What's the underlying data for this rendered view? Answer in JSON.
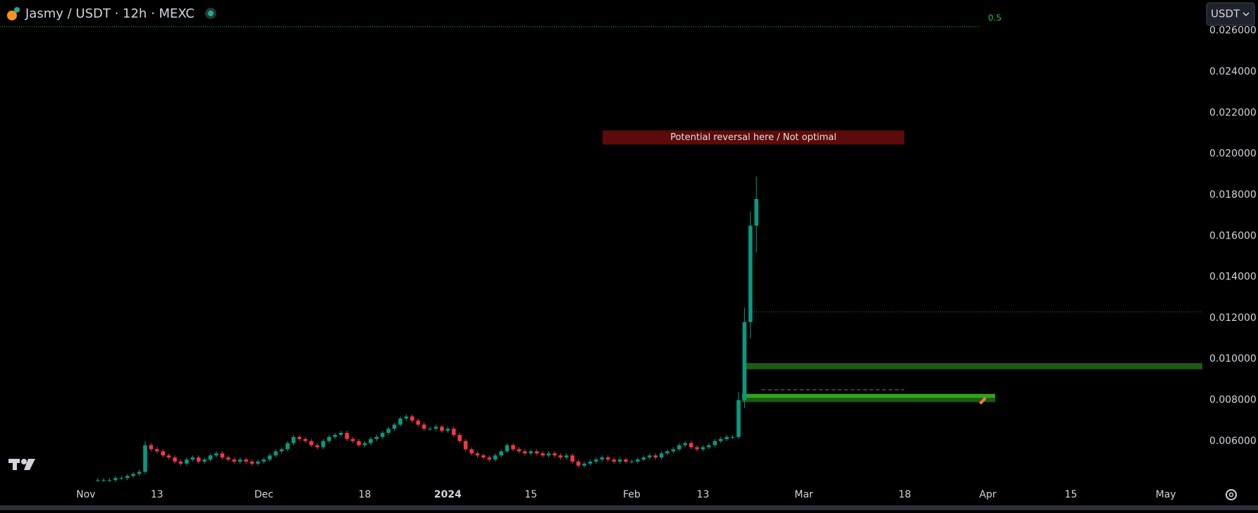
{
  "chart_data": {
    "type": "candlestick",
    "title": "Jasmy / USDT · 12h · MEXC",
    "quote_selector": "USDT",
    "categories": [
      null,
      null,
      null,
      null,
      null,
      null,
      null,
      null,
      null,
      null,
      null,
      null,
      null,
      null,
      "Nov",
      null,
      null,
      null,
      null,
      null,
      null,
      null,
      null,
      null,
      null,
      null,
      "13",
      null,
      null,
      null,
      null,
      null,
      null,
      null,
      null,
      null,
      null,
      null,
      null,
      null,
      null,
      null,
      null,
      null,
      "Dec",
      null,
      null,
      null,
      null,
      null,
      null,
      null,
      null,
      null,
      null,
      null,
      null,
      null,
      null,
      null,
      null,
      "18",
      null,
      null,
      null,
      null,
      null,
      null,
      null,
      null,
      null,
      null,
      null,
      null,
      null,
      "2024",
      null,
      null,
      null,
      null,
      null,
      null,
      null,
      null,
      null,
      null,
      null,
      null,
      null,
      "15",
      null,
      null,
      null,
      null,
      null,
      null,
      null,
      null,
      null,
      null,
      null,
      null,
      null,
      null,
      null,
      null,
      "Feb",
      null,
      null,
      null,
      null,
      null,
      null,
      null,
      null,
      null,
      null,
      null,
      "13",
      null,
      null,
      null,
      null,
      null,
      null,
      null,
      null,
      null,
      null,
      null,
      null,
      null,
      null,
      null,
      null,
      "Mar",
      null,
      null,
      null,
      null,
      null,
      null,
      null,
      null,
      null,
      null,
      null,
      null,
      null,
      null,
      null,
      null,
      "18",
      null,
      null,
      null,
      null,
      null,
      null,
      null,
      null,
      null,
      null,
      null,
      null,
      null,
      "Apr",
      null,
      null,
      null,
      null,
      null,
      null,
      null,
      null,
      null,
      null,
      null,
      null,
      null,
      "15",
      null,
      null,
      null,
      null,
      null,
      null,
      null,
      null,
      null,
      null,
      null,
      null,
      null,
      null,
      null,
      "May",
      null,
      null,
      null,
      null,
      null,
      null
    ],
    "open": [
      null,
      null,
      null,
      null,
      null,
      null,
      null,
      null,
      null,
      null,
      null,
      null,
      null,
      null,
      null,
      null,
      0.0041,
      0.0041,
      0.0041,
      0.0041,
      0.0042,
      0.0042,
      0.0043,
      0.0044,
      0.0045,
      0.0058,
      0.0056,
      0.0055,
      0.0053,
      0.0052,
      0.005,
      0.0049,
      0.0051,
      0.0052,
      0.005,
      0.0051,
      0.0053,
      0.0054,
      0.0052,
      0.0051,
      0.005,
      0.0051,
      0.005,
      0.0049,
      0.005,
      0.0051,
      0.0053,
      0.0055,
      0.0056,
      0.0059,
      0.0062,
      0.0061,
      0.006,
      0.0058,
      0.0057,
      0.006,
      0.0062,
      0.0063,
      0.0064,
      0.0061,
      0.006,
      0.0058,
      0.0059,
      0.0061,
      0.0062,
      0.0064,
      0.0066,
      0.0068,
      0.0071,
      0.0072,
      0.007,
      0.0068,
      0.0066,
      0.0066,
      0.0067,
      0.0065,
      0.0066,
      0.0063,
      0.006,
      0.0056,
      0.0054,
      0.0053,
      0.0052,
      0.0051,
      0.0053,
      0.0055,
      0.0058,
      0.0056,
      0.0055,
      0.0054,
      0.0055,
      0.0054,
      0.0053,
      0.0054,
      0.0053,
      0.0052,
      0.0053,
      0.005,
      0.0048,
      0.0049,
      0.005,
      0.0051,
      0.0052,
      0.0051,
      0.005,
      0.0051,
      0.005,
      0.005,
      0.0051,
      0.0052,
      0.0053,
      0.0052,
      0.0054,
      0.0055,
      0.0056,
      0.0058,
      0.0059,
      0.0057,
      0.0056,
      0.0057,
      0.0058,
      0.006,
      0.0061,
      0.0062,
      0.0062,
      0.008,
      0.0118,
      0.0165,
      null,
      null,
      null,
      null,
      null,
      null,
      null,
      null,
      null,
      null,
      null,
      null,
      null,
      null,
      null,
      null,
      null,
      null,
      null,
      null,
      null,
      null,
      null,
      null,
      null,
      null,
      null,
      null,
      null,
      null,
      null,
      null,
      null,
      null,
      null,
      null,
      null,
      null,
      null,
      null,
      null,
      null,
      null,
      null,
      null,
      null,
      null,
      null,
      null,
      null,
      null,
      null,
      null,
      null,
      null,
      null,
      null,
      null,
      null,
      null,
      null,
      null,
      null,
      null,
      null,
      null,
      null,
      null,
      null,
      null,
      null,
      null,
      null,
      null,
      null
    ],
    "high": [
      null,
      null,
      null,
      null,
      null,
      null,
      null,
      null,
      null,
      null,
      null,
      null,
      null,
      null,
      null,
      null,
      0.0042,
      0.0042,
      0.0042,
      0.0043,
      0.0043,
      0.0044,
      0.0045,
      0.0046,
      0.006,
      0.0059,
      0.0057,
      0.0056,
      0.0054,
      0.0053,
      0.0051,
      0.0052,
      0.0053,
      0.0053,
      0.0052,
      0.0054,
      0.0055,
      0.0055,
      0.0053,
      0.0052,
      0.0052,
      0.0052,
      0.0051,
      0.0051,
      0.0052,
      0.0054,
      0.0056,
      0.0057,
      0.006,
      0.0063,
      0.0063,
      0.0062,
      0.0061,
      0.0059,
      0.0061,
      0.0063,
      0.0064,
      0.0065,
      0.0065,
      0.0062,
      0.0061,
      0.006,
      0.0062,
      0.0063,
      0.0065,
      0.0067,
      0.0069,
      0.0072,
      0.0073,
      0.0073,
      0.0071,
      0.0069,
      0.0067,
      0.0068,
      0.0068,
      0.0067,
      0.0067,
      0.0064,
      0.0061,
      0.0057,
      0.0055,
      0.0054,
      0.0053,
      0.0054,
      0.0056,
      0.0059,
      0.0059,
      0.0057,
      0.0056,
      0.0056,
      0.0056,
      0.0055,
      0.0055,
      0.0055,
      0.0054,
      0.0054,
      0.0054,
      0.0051,
      0.005,
      0.0051,
      0.0052,
      0.0053,
      0.0053,
      0.0052,
      0.0052,
      0.0052,
      0.0051,
      0.0052,
      0.0053,
      0.0054,
      0.0054,
      0.0055,
      0.0056,
      0.0057,
      0.0059,
      0.006,
      0.006,
      0.0058,
      0.0058,
      0.0059,
      0.0061,
      0.0062,
      0.0063,
      0.0063,
      0.0084,
      0.0125,
      0.0172,
      0.0189,
      null,
      null,
      null,
      null,
      null,
      null,
      null,
      null,
      null,
      null,
      null,
      null,
      null,
      null,
      null,
      null,
      null,
      null,
      null,
      null,
      null,
      null,
      null,
      null,
      null,
      null,
      null,
      null,
      null,
      null,
      null,
      null,
      null,
      null,
      null,
      null,
      null,
      null,
      null,
      null,
      null,
      null,
      null,
      null,
      null,
      null,
      null,
      null,
      null,
      null,
      null,
      null,
      null,
      null,
      null,
      null,
      null,
      null,
      null,
      null,
      null,
      null,
      null,
      null,
      null,
      null,
      null,
      null,
      null,
      null,
      null,
      null,
      null,
      null,
      null
    ],
    "low": [
      null,
      null,
      null,
      null,
      null,
      null,
      null,
      null,
      null,
      null,
      null,
      null,
      null,
      null,
      null,
      null,
      0.004,
      0.004,
      0.004,
      0.004,
      0.0041,
      0.0041,
      0.0042,
      0.0043,
      0.0044,
      0.0055,
      0.0054,
      0.0052,
      0.0051,
      0.0049,
      0.0048,
      0.0048,
      0.005,
      0.0049,
      0.0049,
      0.005,
      0.0052,
      0.0051,
      0.005,
      0.0049,
      0.0049,
      0.0049,
      0.0048,
      0.0048,
      0.0049,
      0.005,
      0.0052,
      0.0054,
      0.0055,
      0.0058,
      0.006,
      0.0059,
      0.0057,
      0.0056,
      0.0056,
      0.0059,
      0.0061,
      0.0062,
      0.006,
      0.0059,
      0.0057,
      0.0057,
      0.0058,
      0.006,
      0.0061,
      0.0063,
      0.0065,
      0.0067,
      0.007,
      0.0069,
      0.0067,
      0.0065,
      0.0065,
      0.0065,
      0.0064,
      0.0064,
      0.0062,
      0.0059,
      0.0055,
      0.0053,
      0.0052,
      0.0051,
      0.005,
      0.005,
      0.0052,
      0.0054,
      0.0055,
      0.0054,
      0.0053,
      0.0053,
      0.0053,
      0.0052,
      0.0052,
      0.0052,
      0.0051,
      0.0051,
      0.0049,
      0.0047,
      0.0047,
      0.0048,
      0.0049,
      0.005,
      0.005,
      0.0049,
      0.0049,
      0.0049,
      0.0049,
      0.0049,
      0.005,
      0.0051,
      0.0051,
      0.0051,
      0.0053,
      0.0054,
      0.0055,
      0.0057,
      0.0056,
      0.0055,
      0.0055,
      0.0056,
      0.0057,
      0.0059,
      0.006,
      0.0061,
      0.0061,
      0.0076,
      0.011,
      0.0152,
      null,
      null,
      null,
      null,
      null,
      null,
      null,
      null,
      null,
      null,
      null,
      null,
      null,
      null,
      null,
      null,
      null,
      null,
      null,
      null,
      null,
      null,
      null,
      null,
      null,
      null,
      null,
      null,
      null,
      null,
      null,
      null,
      null,
      null,
      null,
      null,
      null,
      null,
      null,
      null,
      null,
      null,
      null,
      null,
      null,
      null,
      null,
      null,
      null,
      null,
      null,
      null,
      null,
      null,
      null,
      null,
      null,
      null,
      null,
      null,
      null,
      null,
      null,
      null,
      null,
      null,
      null,
      null,
      null,
      null,
      null,
      null,
      null,
      null,
      null
    ],
    "close": [
      null,
      null,
      null,
      null,
      null,
      null,
      null,
      null,
      null,
      null,
      null,
      null,
      null,
      null,
      null,
      null,
      0.0041,
      0.0041,
      0.0041,
      0.0042,
      0.0042,
      0.0043,
      0.0044,
      0.0045,
      0.0058,
      0.0056,
      0.0055,
      0.0053,
      0.0052,
      0.005,
      0.0049,
      0.0051,
      0.0052,
      0.005,
      0.0051,
      0.0053,
      0.0054,
      0.0052,
      0.0051,
      0.005,
      0.0051,
      0.005,
      0.0049,
      0.005,
      0.0051,
      0.0053,
      0.0055,
      0.0056,
      0.0059,
      0.0062,
      0.0061,
      0.006,
      0.0058,
      0.0057,
      0.006,
      0.0062,
      0.0063,
      0.0064,
      0.0061,
      0.006,
      0.0058,
      0.0059,
      0.0061,
      0.0062,
      0.0064,
      0.0066,
      0.0068,
      0.0071,
      0.0072,
      0.007,
      0.0068,
      0.0066,
      0.0066,
      0.0067,
      0.0065,
      0.0066,
      0.0063,
      0.006,
      0.0056,
      0.0054,
      0.0053,
      0.0052,
      0.0051,
      0.0053,
      0.0055,
      0.0058,
      0.0056,
      0.0055,
      0.0054,
      0.0055,
      0.0054,
      0.0053,
      0.0054,
      0.0053,
      0.0052,
      0.0053,
      0.005,
      0.0048,
      0.0049,
      0.005,
      0.0051,
      0.0052,
      0.0051,
      0.005,
      0.0051,
      0.005,
      0.005,
      0.0051,
      0.0052,
      0.0053,
      0.0052,
      0.0054,
      0.0055,
      0.0056,
      0.0058,
      0.0059,
      0.0057,
      0.0056,
      0.0057,
      0.0058,
      0.006,
      0.0061,
      0.0062,
      0.0062,
      0.008,
      0.0118,
      0.0165,
      0.0178,
      null,
      null,
      null,
      null,
      null,
      null,
      null,
      null,
      null,
      null,
      null,
      null,
      null,
      null,
      null,
      null,
      null,
      null,
      null,
      null,
      null,
      null,
      null,
      null,
      null,
      null,
      null,
      null,
      null,
      null,
      null,
      null,
      null,
      null,
      null,
      null,
      null,
      null,
      null,
      null,
      null,
      null,
      null,
      null,
      null,
      null,
      null,
      null,
      null,
      null,
      null,
      null,
      null,
      null,
      null,
      null,
      null,
      null,
      null,
      null,
      null,
      null,
      null,
      null,
      null,
      null,
      null,
      null,
      null,
      null,
      null,
      null,
      null,
      null,
      null
    ],
    "up_color": "#089981",
    "down_color": "#f23645",
    "ylim": [
      0.0039,
      0.0275
    ],
    "yticks": [
      {
        "value": 0.006,
        "label": "0.006000"
      },
      {
        "value": 0.008,
        "label": "0.008000"
      },
      {
        "value": 0.01,
        "label": "0.010000"
      },
      {
        "value": 0.012,
        "label": "0.012000"
      },
      {
        "value": 0.014,
        "label": "0.014000"
      },
      {
        "value": 0.016,
        "label": "0.016000"
      },
      {
        "value": 0.018,
        "label": "0.018000"
      },
      {
        "value": 0.02,
        "label": "0.020000"
      },
      {
        "value": 0.022,
        "label": "0.022000"
      },
      {
        "value": 0.024,
        "label": "0.024000"
      },
      {
        "value": 0.026,
        "label": "0.026000"
      }
    ],
    "fib_level": {
      "label": "0.5",
      "value": 0.0262,
      "color": "#22c32e"
    },
    "levels": [
      {
        "value": 0.0123,
        "style": "dotted",
        "color": "#2e7d32"
      },
      {
        "value": 0.0085,
        "style": "dashed",
        "color": "#787b86"
      }
    ],
    "zones": [
      {
        "low": 0.0095,
        "high": 0.0098,
        "color": "#1e5a14"
      },
      {
        "low": 0.0081,
        "high": 0.0083,
        "color": "#2ea31c"
      },
      {
        "low": 0.0079,
        "high": 0.0081,
        "color": "#1e5a14"
      }
    ],
    "annotation": {
      "text": "Potential reversal here / Not optimal",
      "value": 0.0208,
      "color": "#5c0a0a"
    },
    "grid": false
  }
}
